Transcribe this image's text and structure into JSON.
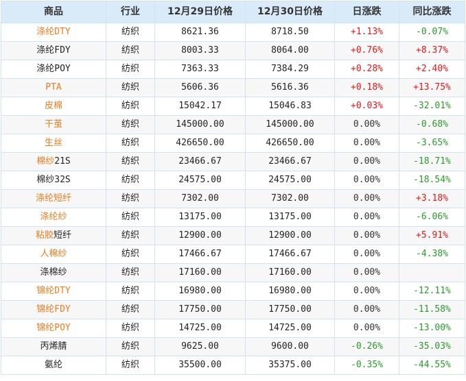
{
  "headers": [
    "商品",
    "行业",
    "12月29日价格",
    "12月30日价格",
    "日涨跌",
    "同比涨跌"
  ],
  "colors": {
    "highlight": "#f07b1d",
    "up": "#e61515",
    "down": "#2a9a2a",
    "header_bg": "#d9ebf8",
    "border": "#cfe3f3"
  },
  "rows": [
    {
      "name": [
        "涤纶DTY"
      ],
      "tone": [
        "orange"
      ],
      "industry": "纺织",
      "p1": "8621.36",
      "p2": "8718.50",
      "daily": "+1.13%",
      "dtrend": "up",
      "yoy": "-0.07%",
      "ytrend": "down"
    },
    {
      "name": [
        "涤纶FDY"
      ],
      "tone": [
        "black"
      ],
      "industry": "纺织",
      "p1": "8003.33",
      "p2": "8064.00",
      "daily": "+0.76%",
      "dtrend": "up",
      "yoy": "+8.37%",
      "ytrend": "up"
    },
    {
      "name": [
        "涤纶POY"
      ],
      "tone": [
        "black"
      ],
      "industry": "纺织",
      "p1": "7363.33",
      "p2": "7384.29",
      "daily": "+0.28%",
      "dtrend": "up",
      "yoy": "+2.40%",
      "ytrend": "up"
    },
    {
      "name": [
        "PTA"
      ],
      "tone": [
        "orange"
      ],
      "industry": "纺织",
      "p1": "5606.36",
      "p2": "5616.36",
      "daily": "+0.18%",
      "dtrend": "up",
      "yoy": "+13.75%",
      "ytrend": "up"
    },
    {
      "name": [
        "皮棉"
      ],
      "tone": [
        "orange"
      ],
      "industry": "纺织",
      "p1": "15042.17",
      "p2": "15046.83",
      "daily": "+0.03%",
      "dtrend": "up",
      "yoy": "-32.01%",
      "ytrend": "down"
    },
    {
      "name": [
        "干茧"
      ],
      "tone": [
        "orange"
      ],
      "industry": "纺织",
      "p1": "145000.00",
      "p2": "145000.00",
      "daily": "0.00%",
      "dtrend": "flat",
      "yoy": "-0.68%",
      "ytrend": "down"
    },
    {
      "name": [
        "生丝"
      ],
      "tone": [
        "orange"
      ],
      "industry": "纺织",
      "p1": "426650.00",
      "p2": "426650.00",
      "daily": "0.00%",
      "dtrend": "flat",
      "yoy": "-3.65%",
      "ytrend": "down"
    },
    {
      "name": [
        "棉纱",
        "21S"
      ],
      "tone": [
        "orange",
        "black"
      ],
      "industry": "纺织",
      "p1": "23466.67",
      "p2": "23466.67",
      "daily": "0.00%",
      "dtrend": "flat",
      "yoy": "-18.71%",
      "ytrend": "down"
    },
    {
      "name": [
        "棉纱32S"
      ],
      "tone": [
        "black"
      ],
      "industry": "纺织",
      "p1": "24575.00",
      "p2": "24575.00",
      "daily": "0.00%",
      "dtrend": "flat",
      "yoy": "-18.54%",
      "ytrend": "down"
    },
    {
      "name": [
        "涤纶短纤"
      ],
      "tone": [
        "orange"
      ],
      "industry": "纺织",
      "p1": "7302.00",
      "p2": "7302.00",
      "daily": "0.00%",
      "dtrend": "flat",
      "yoy": "+3.18%",
      "ytrend": "up"
    },
    {
      "name": [
        "涤纶纱"
      ],
      "tone": [
        "orange"
      ],
      "industry": "纺织",
      "p1": "13175.00",
      "p2": "13175.00",
      "daily": "0.00%",
      "dtrend": "flat",
      "yoy": "-6.06%",
      "ytrend": "down"
    },
    {
      "name": [
        "粘胶",
        "短纤"
      ],
      "tone": [
        "orange",
        "black"
      ],
      "industry": "纺织",
      "p1": "12900.00",
      "p2": "12900.00",
      "daily": "0.00%",
      "dtrend": "flat",
      "yoy": "+5.91%",
      "ytrend": "up"
    },
    {
      "name": [
        "人棉纱"
      ],
      "tone": [
        "orange"
      ],
      "industry": "纺织",
      "p1": "17466.67",
      "p2": "17466.67",
      "daily": "0.00%",
      "dtrend": "flat",
      "yoy": "-4.38%",
      "ytrend": "down"
    },
    {
      "name": [
        "涤棉纱"
      ],
      "tone": [
        "black"
      ],
      "industry": "纺织",
      "p1": "17160.00",
      "p2": "17160.00",
      "daily": "0.00%",
      "dtrend": "flat",
      "yoy": "",
      "ytrend": "flat"
    },
    {
      "name": [
        "锦纶DTY"
      ],
      "tone": [
        "orange"
      ],
      "industry": "纺织",
      "p1": "16980.00",
      "p2": "16980.00",
      "daily": "0.00%",
      "dtrend": "flat",
      "yoy": "-12.11%",
      "ytrend": "down"
    },
    {
      "name": [
        "锦纶FDY"
      ],
      "tone": [
        "orange"
      ],
      "industry": "纺织",
      "p1": "17750.00",
      "p2": "17750.00",
      "daily": "0.00%",
      "dtrend": "flat",
      "yoy": "-11.58%",
      "ytrend": "down"
    },
    {
      "name": [
        "锦纶POY"
      ],
      "tone": [
        "orange"
      ],
      "industry": "纺织",
      "p1": "14725.00",
      "p2": "14725.00",
      "daily": "0.00%",
      "dtrend": "flat",
      "yoy": "-13.00%",
      "ytrend": "down"
    },
    {
      "name": [
        "丙烯腈"
      ],
      "tone": [
        "black"
      ],
      "industry": "纺织",
      "p1": "9625.00",
      "p2": "9600.00",
      "daily": "-0.26%",
      "dtrend": "down",
      "yoy": "-35.03%",
      "ytrend": "down"
    },
    {
      "name": [
        "氨纶"
      ],
      "tone": [
        "black"
      ],
      "industry": "纺织",
      "p1": "35500.00",
      "p2": "35375.00",
      "daily": "-0.35%",
      "dtrend": "down",
      "yoy": "-44.55%",
      "ytrend": "down"
    }
  ]
}
